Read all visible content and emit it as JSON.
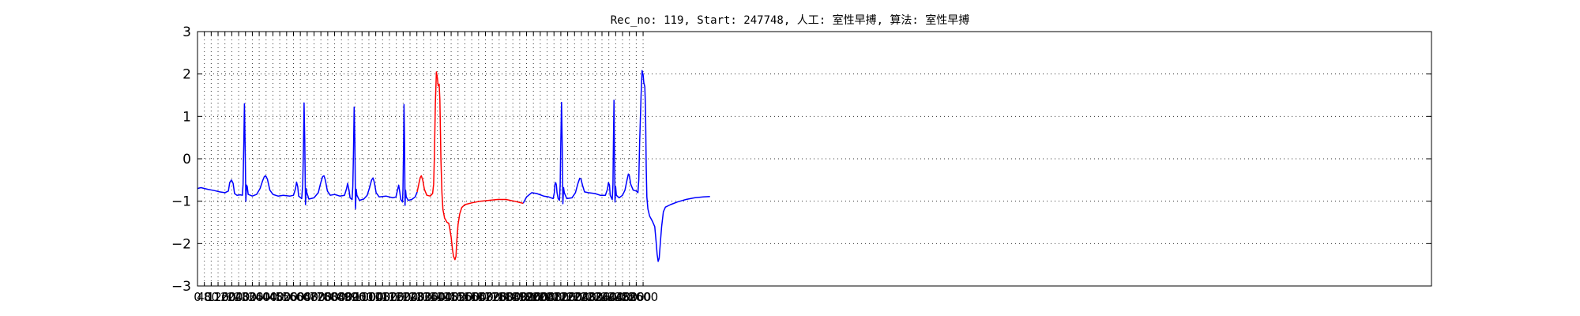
{
  "chart_data": {
    "type": "line",
    "title": "Rec_no: 119, Start: 247748, 人工: 室性早搏, 算法: 室性早搏",
    "xlabel": "",
    "ylabel": "",
    "xlim": [
      0,
      7200
    ],
    "ylim": [
      -3,
      3
    ],
    "grid": true,
    "y_ticks": [
      -3,
      -2,
      -1,
      0,
      1,
      2,
      3
    ],
    "y_tick_labels": [
      "−3",
      "−2",
      "−1",
      "0",
      "1",
      "2",
      "3"
    ],
    "x_ticks": [
      0,
      40,
      80,
      120,
      160,
      200,
      240,
      280,
      320,
      360,
      400,
      440,
      480,
      520,
      560,
      600,
      640,
      680,
      720,
      760,
      800,
      840,
      880,
      920,
      960,
      1000,
      1040,
      1080,
      1120,
      1160,
      1200,
      1240,
      1280,
      1320,
      1360,
      1400,
      1440,
      1480,
      1520,
      1560,
      1600,
      1640,
      1680,
      1720,
      1760,
      1800,
      1840,
      1880,
      1920,
      1960,
      2000,
      2040,
      2080,
      2120,
      2160,
      2200,
      2240,
      2280,
      2320,
      2360,
      2400,
      2440,
      2480,
      2520,
      2560,
      2600
    ],
    "x_tick_range": [
      0,
      2600
    ],
    "series": [
      {
        "color": "#0000ff",
        "segments": [
          [
            [
              0,
              -0.7
            ],
            [
              20,
              -0.68
            ],
            [
              60,
              -0.72
            ],
            [
              100,
              -0.75
            ],
            [
              130,
              -0.78
            ],
            [
              160,
              -0.8
            ],
            [
              180,
              -0.76
            ],
            [
              188,
              -0.56
            ],
            [
              198,
              -0.5
            ],
            [
              208,
              -0.58
            ],
            [
              216,
              -0.82
            ],
            [
              230,
              -0.86
            ],
            [
              250,
              -0.85
            ],
            [
              262,
              -0.86
            ],
            [
              266,
              -0.6
            ],
            [
              270,
              0.35
            ],
            [
              274,
              1.3
            ],
            [
              278,
              0.3
            ],
            [
              282,
              -1.0
            ],
            [
              286,
              -0.62
            ],
            [
              290,
              -0.65
            ],
            [
              296,
              -0.84
            ],
            [
              320,
              -0.88
            ],
            [
              345,
              -0.84
            ],
            [
              365,
              -0.7
            ],
            [
              380,
              -0.52
            ],
            [
              390,
              -0.42
            ],
            [
              398,
              -0.4
            ],
            [
              408,
              -0.48
            ],
            [
              422,
              -0.74
            ],
            [
              440,
              -0.84
            ],
            [
              470,
              -0.88
            ],
            [
              500,
              -0.86
            ],
            [
              540,
              -0.88
            ],
            [
              560,
              -0.86
            ],
            [
              572,
              -0.7
            ],
            [
              578,
              -0.55
            ],
            [
              585,
              -0.66
            ],
            [
              590,
              -0.88
            ],
            [
              608,
              -0.94
            ],
            [
              614,
              -0.6
            ],
            [
              618,
              0.2
            ],
            [
              622,
              1.32
            ],
            [
              626,
              0.4
            ],
            [
              630,
              -1.08
            ],
            [
              634,
              -0.7
            ],
            [
              638,
              -0.8
            ],
            [
              650,
              -0.95
            ],
            [
              680,
              -0.92
            ],
            [
              705,
              -0.8
            ],
            [
              718,
              -0.58
            ],
            [
              730,
              -0.42
            ],
            [
              738,
              -0.4
            ],
            [
              746,
              -0.5
            ],
            [
              758,
              -0.76
            ],
            [
              775,
              -0.86
            ],
            [
              800,
              -0.84
            ],
            [
              830,
              -0.88
            ],
            [
              858,
              -0.86
            ],
            [
              870,
              -0.7
            ],
            [
              876,
              -0.58
            ],
            [
              884,
              -0.74
            ],
            [
              890,
              -0.92
            ],
            [
              902,
              -0.96
            ],
            [
              906,
              -0.65
            ],
            [
              910,
              0.1
            ],
            [
              914,
              1.22
            ],
            [
              918,
              0.4
            ],
            [
              922,
              -1.18
            ],
            [
              926,
              -0.72
            ],
            [
              930,
              -0.86
            ],
            [
              945,
              -0.98
            ],
            [
              970,
              -0.95
            ],
            [
              990,
              -0.86
            ],
            [
              1004,
              -0.68
            ],
            [
              1016,
              -0.5
            ],
            [
              1024,
              -0.45
            ],
            [
              1032,
              -0.56
            ],
            [
              1042,
              -0.8
            ],
            [
              1060,
              -0.9
            ],
            [
              1100,
              -0.88
            ],
            [
              1140,
              -0.92
            ],
            [
              1158,
              -0.9
            ],
            [
              1168,
              -0.72
            ],
            [
              1174,
              -0.62
            ],
            [
              1180,
              -0.78
            ],
            [
              1186,
              -0.96
            ],
            [
              1196,
              -1.02
            ],
            [
              1199,
              -0.7
            ],
            [
              1202,
              0.2
            ],
            [
              1205,
              1.28
            ],
            [
              1208,
              0.4
            ],
            [
              1211,
              -1.1
            ],
            [
              1214,
              -0.74
            ],
            [
              1218,
              -0.9
            ],
            [
              1230,
              -0.98
            ],
            [
              1250,
              -0.96
            ],
            [
              1270,
              -0.9
            ],
            [
              1282,
              -0.78
            ]
          ],
          [
            [
              1900,
              -1.05
            ],
            [
              1920,
              -0.9
            ],
            [
              1950,
              -0.8
            ],
            [
              1980,
              -0.82
            ],
            [
              2020,
              -0.88
            ],
            [
              2050,
              -0.9
            ],
            [
              2075,
              -0.94
            ],
            [
              2082,
              -0.8
            ],
            [
              2086,
              -0.6
            ],
            [
              2090,
              -0.56
            ],
            [
              2094,
              -0.62
            ],
            [
              2098,
              -0.8
            ],
            [
              2104,
              -0.94
            ],
            [
              2112,
              -0.98
            ],
            [
              2116,
              -0.6
            ],
            [
              2120,
              0.4
            ],
            [
              2124,
              1.33
            ],
            [
              2128,
              0.3
            ],
            [
              2132,
              -1.06
            ],
            [
              2136,
              -0.68
            ],
            [
              2140,
              -0.8
            ],
            [
              2155,
              -0.94
            ],
            [
              2185,
              -0.92
            ],
            [
              2205,
              -0.8
            ],
            [
              2220,
              -0.58
            ],
            [
              2230,
              -0.46
            ],
            [
              2238,
              -0.48
            ],
            [
              2246,
              -0.62
            ],
            [
              2258,
              -0.78
            ],
            [
              2280,
              -0.8
            ],
            [
              2320,
              -0.82
            ],
            [
              2350,
              -0.86
            ],
            [
              2380,
              -0.86
            ],
            [
              2392,
              -0.72
            ],
            [
              2398,
              -0.56
            ],
            [
              2404,
              -0.62
            ],
            [
              2408,
              -0.86
            ],
            [
              2420,
              -0.96
            ],
            [
              2424,
              -0.6
            ],
            [
              2427,
              0.4
            ],
            [
              2430,
              1.38
            ],
            [
              2433,
              0.2
            ],
            [
              2436,
              -1.02
            ],
            [
              2440,
              -0.66
            ],
            [
              2444,
              -0.86
            ],
            [
              2460,
              -0.92
            ],
            [
              2480,
              -0.86
            ],
            [
              2494,
              -0.74
            ],
            [
              2506,
              -0.5
            ],
            [
              2514,
              -0.36
            ],
            [
              2520,
              -0.4
            ],
            [
              2528,
              -0.6
            ],
            [
              2542,
              -0.74
            ],
            [
              2560,
              -0.76
            ],
            [
              2570,
              -0.8
            ],
            [
              2575,
              -0.5
            ],
            [
              2580,
              0.4
            ],
            [
              2588,
              1.5
            ],
            [
              2594,
              2.08
            ],
            [
              2600,
              1.98
            ],
            [
              2604,
              1.8
            ],
            [
              2610,
              1.7
            ],
            [
              2614,
              1.2
            ],
            [
              2618,
              -0.2
            ],
            [
              2622,
              -0.9
            ],
            [
              2628,
              -1.18
            ],
            [
              2638,
              -1.35
            ],
            [
              2655,
              -1.48
            ],
            [
              2668,
              -1.6
            ],
            [
              2676,
              -1.95
            ],
            [
              2682,
              -2.25
            ],
            [
              2688,
              -2.42
            ],
            [
              2694,
              -2.35
            ],
            [
              2700,
              -2.0
            ],
            [
              2708,
              -1.6
            ],
            [
              2718,
              -1.25
            ],
            [
              2730,
              -1.14
            ],
            [
              2760,
              -1.08
            ],
            [
              2800,
              -1.02
            ],
            [
              2850,
              -0.96
            ],
            [
              2900,
              -0.92
            ],
            [
              2950,
              -0.9
            ],
            [
              2990,
              -0.89
            ]
          ]
        ]
      },
      {
        "color": "#ff0000",
        "segments": [
          [
            [
              1282,
              -0.78
            ],
            [
              1292,
              -0.58
            ],
            [
              1300,
              -0.44
            ],
            [
              1306,
              -0.4
            ],
            [
              1314,
              -0.5
            ],
            [
              1324,
              -0.72
            ],
            [
              1338,
              -0.86
            ],
            [
              1358,
              -0.88
            ],
            [
              1372,
              -0.82
            ],
            [
              1378,
              -0.6
            ],
            [
              1382,
              0.0
            ],
            [
              1388,
              1.3
            ],
            [
              1394,
              2.05
            ],
            [
              1400,
              1.9
            ],
            [
              1404,
              1.72
            ],
            [
              1410,
              1.76
            ],
            [
              1414,
              1.4
            ],
            [
              1420,
              0.0
            ],
            [
              1426,
              -0.8
            ],
            [
              1432,
              -1.2
            ],
            [
              1442,
              -1.4
            ],
            [
              1456,
              -1.5
            ],
            [
              1466,
              -1.52
            ],
            [
              1472,
              -1.64
            ],
            [
              1480,
              -1.85
            ],
            [
              1488,
              -2.15
            ],
            [
              1494,
              -2.3
            ],
            [
              1502,
              -2.38
            ],
            [
              1508,
              -2.3
            ],
            [
              1512,
              -2.0
            ],
            [
              1520,
              -1.55
            ],
            [
              1530,
              -1.3
            ],
            [
              1542,
              -1.15
            ],
            [
              1560,
              -1.08
            ],
            [
              1600,
              -1.04
            ],
            [
              1650,
              -1.0
            ],
            [
              1700,
              -0.98
            ],
            [
              1750,
              -0.96
            ],
            [
              1800,
              -0.96
            ],
            [
              1850,
              -1.0
            ],
            [
              1900,
              -1.05
            ]
          ]
        ]
      }
    ]
  }
}
